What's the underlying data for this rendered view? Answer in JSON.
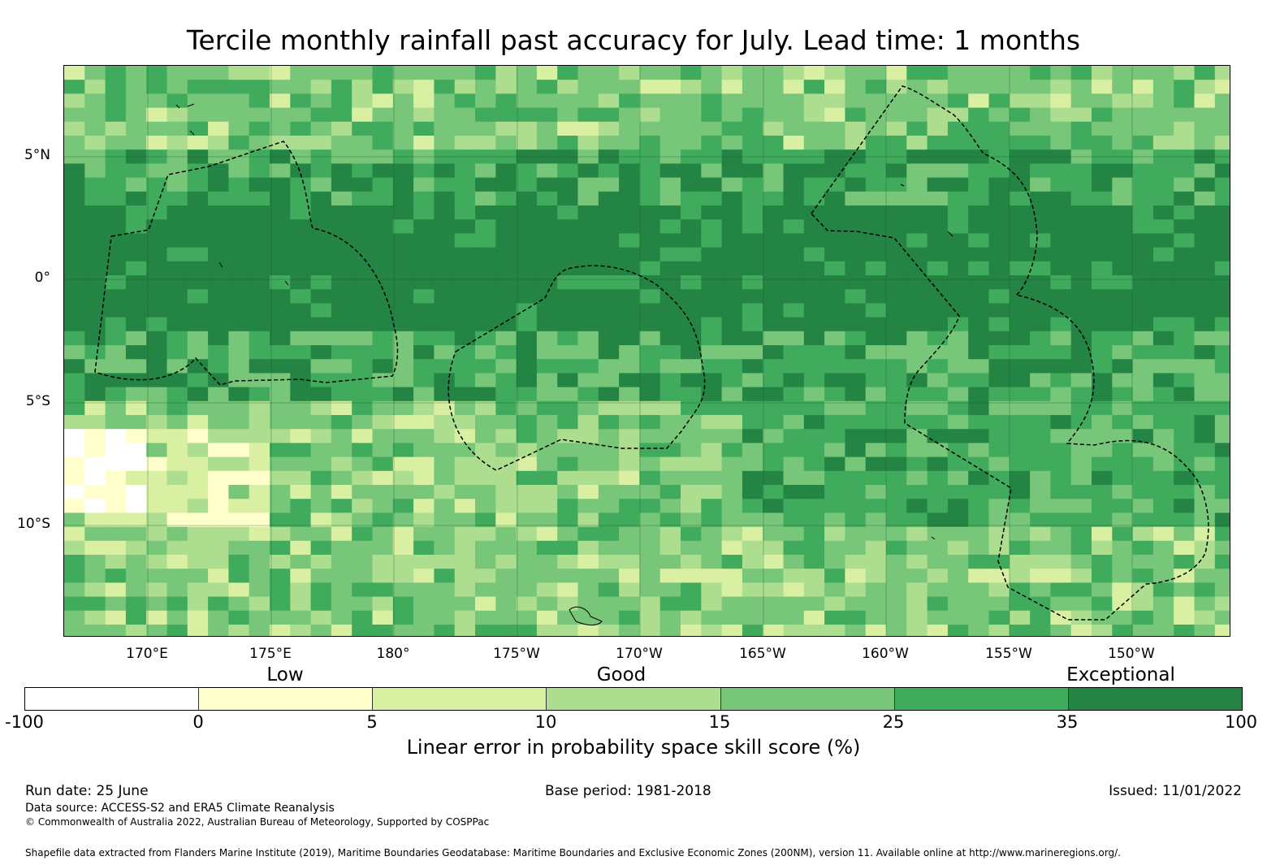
{
  "title": "Tercile monthly rainfall past accuracy for July. Lead time: 1 months",
  "map": {
    "lat_labels": [
      "5°N",
      "0°",
      "5°S",
      "10°S"
    ],
    "lon_labels": [
      "170°E",
      "175°E",
      "180°",
      "175°W",
      "170°W",
      "165°W",
      "160°W",
      "155°W",
      "150°W"
    ],
    "lon_range": [
      166.6,
      213.9
    ],
    "lat_range": [
      -14.5,
      8.7
    ],
    "categories": [
      "Low",
      "Good",
      "Exceptional"
    ]
  },
  "colorbar": {
    "ticks": [
      "-100",
      "0",
      "5",
      "10",
      "15",
      "25",
      "35",
      "100"
    ],
    "colors": [
      "#ffffff",
      "#ffffcc",
      "#d9f0a3",
      "#addd8e",
      "#78c679",
      "#41ab5d",
      "#238443"
    ],
    "label": "Linear error in probability space skill score (%)"
  },
  "footer": {
    "run_date": "Run date: 25 June",
    "base_period": "Base period: 1981-2018",
    "issued": "Issued: 11/01/2022",
    "data_source": "Data source: ACCESS-S2 and ERA5 Climate Reanalysis",
    "copyright": "© Commonwealth of Australia 2022, Australian Bureau of Meteorology, Supported by COSPPac",
    "shapefile": "Shapefile data extracted from Flanders Marine Institute (2019), Maritime Boundaries Geodatabase: Maritime Boundaries and Exclusive Economic Zones (200NM), version 11. Available online at http://www.marineregions.org/."
  }
}
